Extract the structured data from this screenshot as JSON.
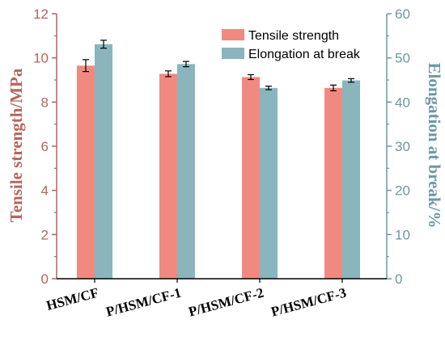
{
  "chart_data": {
    "type": "bar",
    "categories": [
      "HSM/CF",
      "P/HSM/CF-1",
      "P/HSM/CF-2",
      "P/HSM/CF-3"
    ],
    "series": [
      {
        "name": "Tensile strength",
        "axis": "left",
        "color": "#f08a80",
        "values": [
          9.65,
          9.28,
          9.13,
          8.64
        ],
        "errors": [
          0.27,
          0.13,
          0.11,
          0.13
        ]
      },
      {
        "name": "Elongation at break",
        "axis": "right",
        "color": "#8ab5bd",
        "values": [
          53.1,
          48.6,
          43.2,
          44.9
        ],
        "errors": [
          0.9,
          0.6,
          0.4,
          0.4
        ]
      }
    ],
    "ylabel_left": "Tensile strength/MPa",
    "ylabel_right": "Elongation at break/%",
    "ylim_left": [
      0,
      12
    ],
    "ylim_right": [
      0,
      60
    ],
    "yticks_left": [
      "0",
      "2",
      "4",
      "6",
      "8",
      "10",
      "12"
    ],
    "yticks_right": [
      "0",
      "10",
      "20",
      "30",
      "40",
      "50",
      "60"
    ],
    "left_axis_color": "#b5655b",
    "right_axis_color": "#6c99a2",
    "legend_position": "top-right",
    "grid": false
  }
}
